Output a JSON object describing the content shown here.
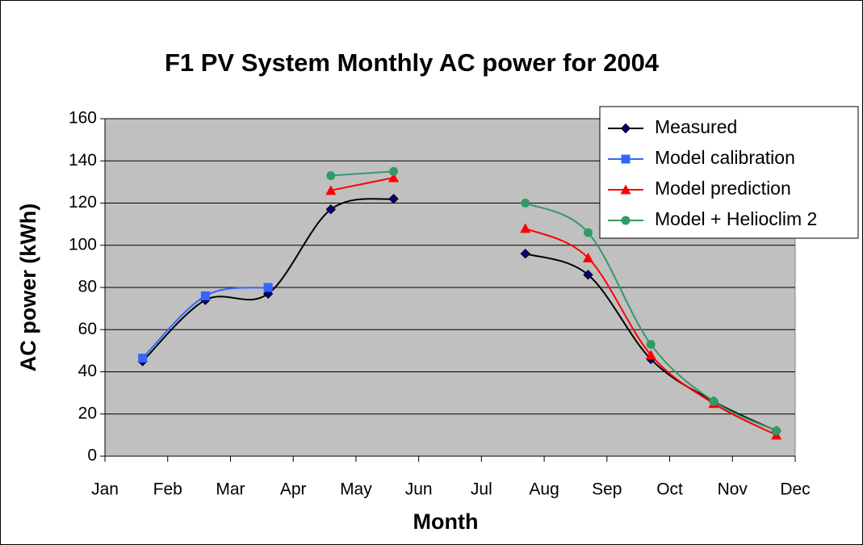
{
  "chart_data": {
    "type": "line",
    "title": "F1 PV System Monthly AC power for 2004",
    "x_label": "Month",
    "y_label": "AC power (kWh)",
    "x": [
      1.6,
      2.6,
      3.6,
      4.6,
      5.6,
      6.6,
      7.7,
      8.7,
      9.7,
      10.7,
      11.7
    ],
    "series": [
      {
        "name": "Measured",
        "color": "#000080",
        "marker": "diamond",
        "line_color": "#000000",
        "values": [
          45,
          74,
          77,
          117,
          122,
          null,
          96,
          86,
          46,
          26,
          12
        ]
      },
      {
        "name": "Model calibration",
        "color": "#3366ff",
        "marker": "square",
        "line_color": "#3366ff",
        "values": [
          46.5,
          76,
          80,
          null,
          null,
          null,
          null,
          null,
          null,
          null,
          null
        ]
      },
      {
        "name": "Model prediction",
        "color": "#ff0000",
        "marker": "triangle",
        "line_color": "#ff0000",
        "values": [
          null,
          null,
          null,
          126,
          132,
          null,
          108,
          94,
          48,
          25,
          10
        ]
      },
      {
        "name": "Model + Helioclim 2",
        "color": "#339966",
        "marker": "circle",
        "line_color": "#339966",
        "values": [
          null,
          null,
          null,
          133,
          135,
          null,
          120,
          106,
          53,
          26,
          12
        ]
      }
    ],
    "xlim": [
      1,
      12
    ],
    "xticks": [
      {
        "value": 1,
        "label": "Jan"
      },
      {
        "value": 2,
        "label": "Feb"
      },
      {
        "value": 3,
        "label": "Mar"
      },
      {
        "value": 4,
        "label": "Apr"
      },
      {
        "value": 5,
        "label": "May"
      },
      {
        "value": 6,
        "label": "Jun"
      },
      {
        "value": 7,
        "label": "Jul"
      },
      {
        "value": 8,
        "label": "Aug"
      },
      {
        "value": 9,
        "label": "Sep"
      },
      {
        "value": 10,
        "label": "Oct"
      },
      {
        "value": 11,
        "label": "Nov"
      },
      {
        "value": 12,
        "label": "Dec"
      }
    ],
    "ylim": [
      0,
      160
    ],
    "yticks": [
      0,
      20,
      40,
      60,
      80,
      100,
      120,
      140,
      160
    ],
    "grid": true,
    "smooth": true,
    "legend": "top-right"
  }
}
